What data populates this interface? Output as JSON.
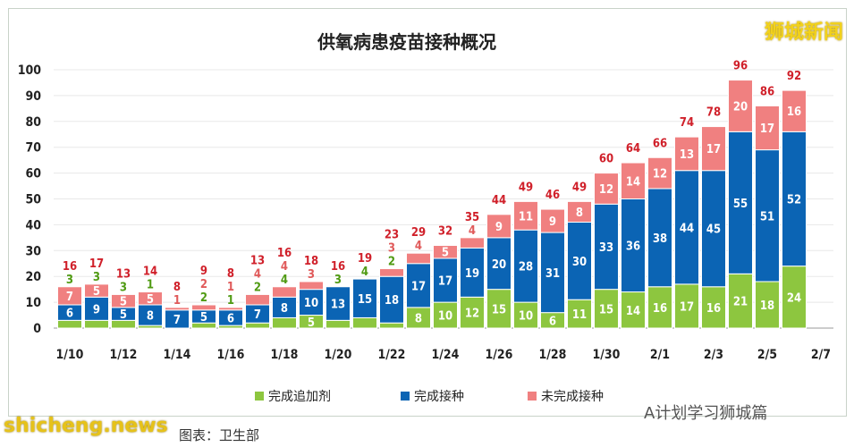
{
  "chart_data": {
    "type": "bar",
    "stacked": true,
    "title": "供氧病患疫苗接种概况",
    "categories": [
      "1/10",
      "1/11",
      "1/12",
      "1/13",
      "1/14",
      "1/15",
      "1/16",
      "1/17",
      "1/18",
      "1/19",
      "1/20",
      "1/21",
      "1/22",
      "1/23",
      "1/24",
      "1/25",
      "1/26",
      "1/27",
      "1/28",
      "1/29",
      "1/30",
      "1/31",
      "2/1",
      "2/2",
      "2/3",
      "2/4",
      "2/5",
      "2/6"
    ],
    "tick_labels": [
      "1/10",
      "1/12",
      "1/14",
      "1/16",
      "1/18",
      "1/20",
      "1/22",
      "1/24",
      "1/26",
      "1/28",
      "1/30",
      "2/1",
      "2/3",
      "2/5",
      "2/7"
    ],
    "series": [
      {
        "name": "完成追加剂",
        "color": "#8dc63f",
        "values": [
          3,
          3,
          3,
          1,
          0,
          2,
          1,
          2,
          4,
          5,
          3,
          4,
          2,
          8,
          10,
          12,
          15,
          10,
          6,
          11,
          15,
          14,
          16,
          17,
          16,
          21,
          18,
          24
        ]
      },
      {
        "name": "完成接种",
        "color": "#0b64b4",
        "values": [
          6,
          9,
          5,
          8,
          7,
          5,
          6,
          7,
          8,
          10,
          13,
          15,
          18,
          17,
          17,
          19,
          20,
          28,
          31,
          30,
          33,
          36,
          38,
          44,
          45,
          55,
          51,
          52
        ]
      },
      {
        "name": "未完成接种",
        "color": "#f08080",
        "values": [
          7,
          5,
          5,
          5,
          1,
          2,
          1,
          4,
          4,
          3,
          0,
          0,
          3,
          4,
          5,
          4,
          9,
          11,
          9,
          8,
          12,
          14,
          12,
          13,
          17,
          20,
          17,
          16
        ]
      }
    ],
    "totals": [
      16,
      17,
      13,
      14,
      8,
      9,
      8,
      13,
      16,
      18,
      16,
      19,
      23,
      29,
      32,
      35,
      44,
      49,
      46,
      49,
      60,
      64,
      66,
      74,
      78,
      96,
      86,
      92
    ],
    "ylim": [
      0,
      100
    ],
    "yticks": [
      0,
      10,
      20,
      30,
      40,
      50,
      60,
      70,
      80,
      90,
      100
    ],
    "grid": true,
    "legend": "bottom",
    "total_label_color": "#d0202a"
  },
  "watermarks": {
    "top_right": "狮城新闻",
    "bottom_left": "shicheng.news",
    "bottom_right": "A计划学习狮城篇",
    "caption": "图表：卫生部"
  }
}
